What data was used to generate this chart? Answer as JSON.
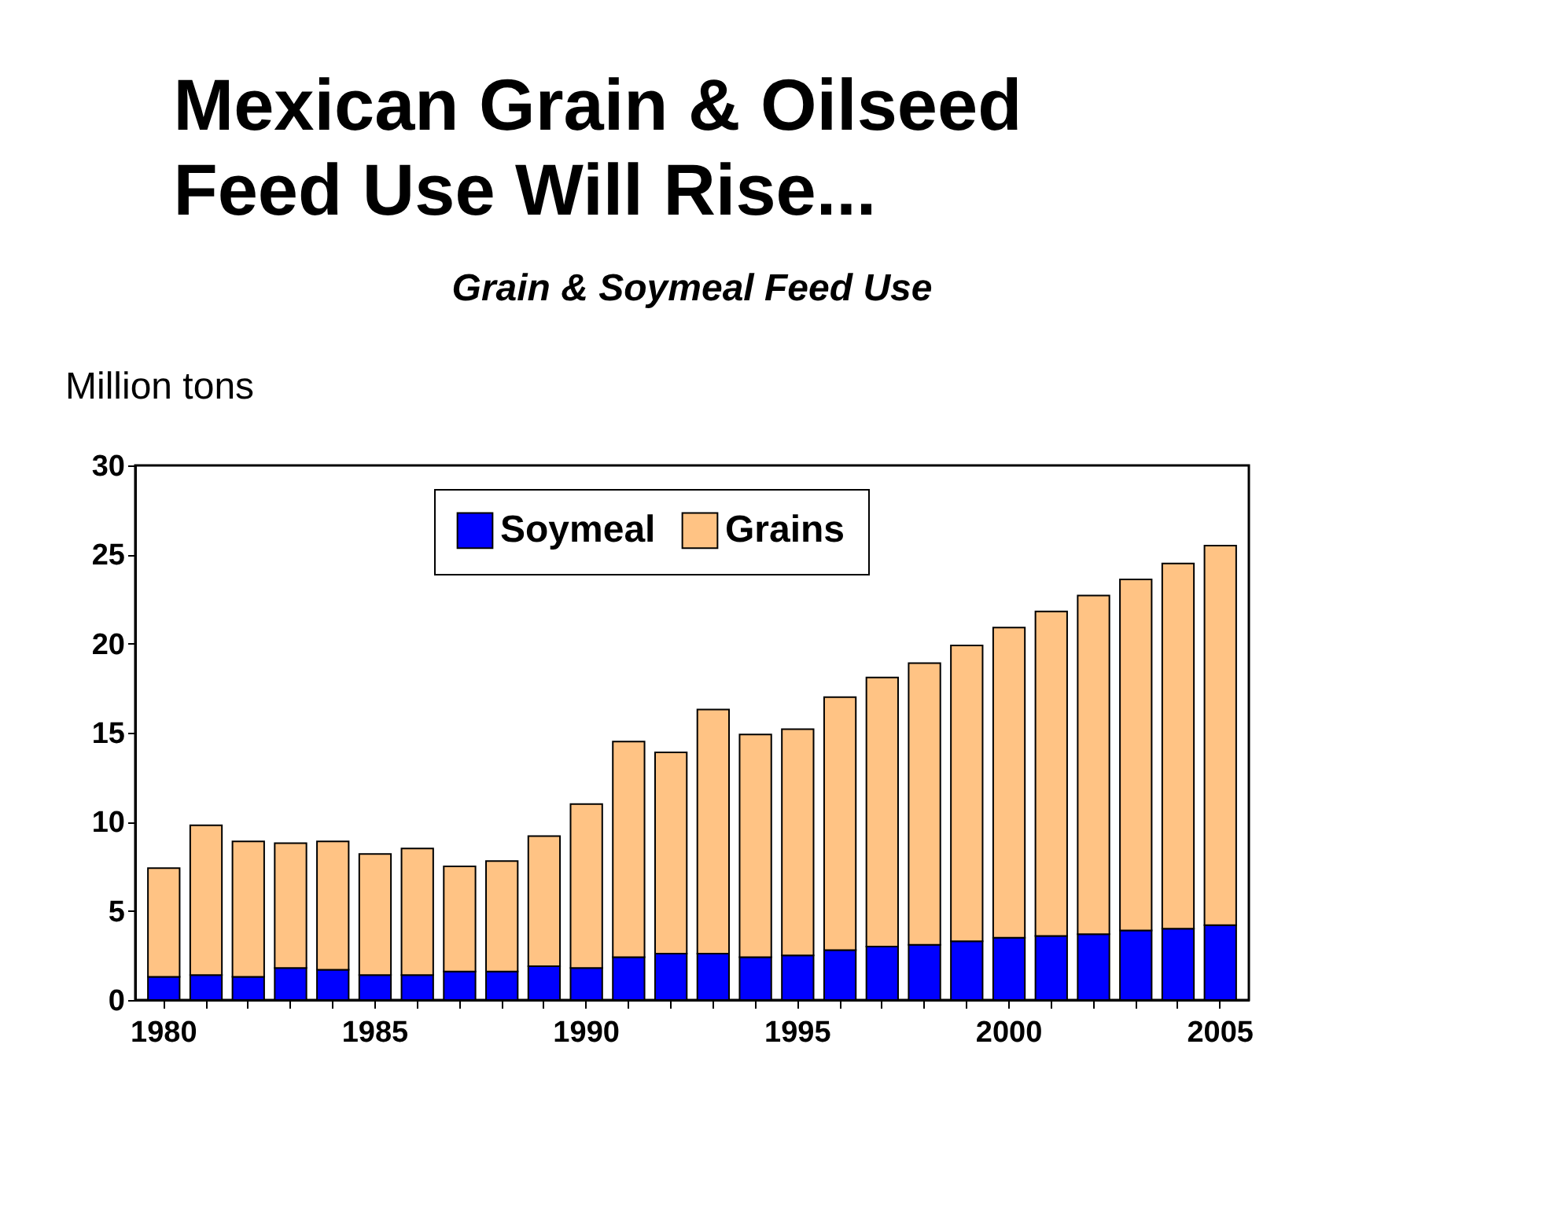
{
  "chart_data": {
    "type": "bar",
    "title": [
      "Mexican Grain & Oilseed",
      "Feed Use Will Rise..."
    ],
    "subtitle": "Grain & Soymeal Feed Use",
    "ylabel": "Million tons",
    "stacked": true,
    "categories": [
      "1980",
      null,
      null,
      null,
      null,
      "1985",
      null,
      null,
      null,
      null,
      "1990",
      null,
      null,
      null,
      null,
      "1995",
      null,
      null,
      null,
      null,
      "2000",
      null,
      null,
      null,
      null,
      "2005"
    ],
    "series": [
      {
        "name": "Soymeal",
        "color": "#0000ff",
        "values": [
          1.3,
          1.4,
          1.3,
          1.8,
          1.7,
          1.4,
          1.4,
          1.6,
          1.6,
          1.9,
          1.8,
          2.4,
          2.6,
          2.6,
          2.4,
          2.5,
          2.8,
          3.0,
          3.1,
          3.3,
          3.5,
          3.6,
          3.7,
          3.9,
          4.0,
          4.2
        ]
      },
      {
        "name": "Grains",
        "color": "#ffc384",
        "values": [
          6.1,
          8.4,
          7.6,
          7.0,
          7.2,
          6.8,
          7.1,
          5.9,
          6.2,
          7.3,
          9.2,
          12.1,
          11.3,
          13.7,
          12.5,
          12.7,
          14.2,
          15.1,
          15.8,
          16.6,
          17.4,
          18.2,
          19.0,
          19.7,
          20.5,
          21.3
        ]
      }
    ],
    "ylim": [
      0,
      30
    ],
    "yticks": [
      0,
      5,
      10,
      15,
      20,
      25,
      30
    ],
    "grid": false,
    "legend": "top"
  }
}
